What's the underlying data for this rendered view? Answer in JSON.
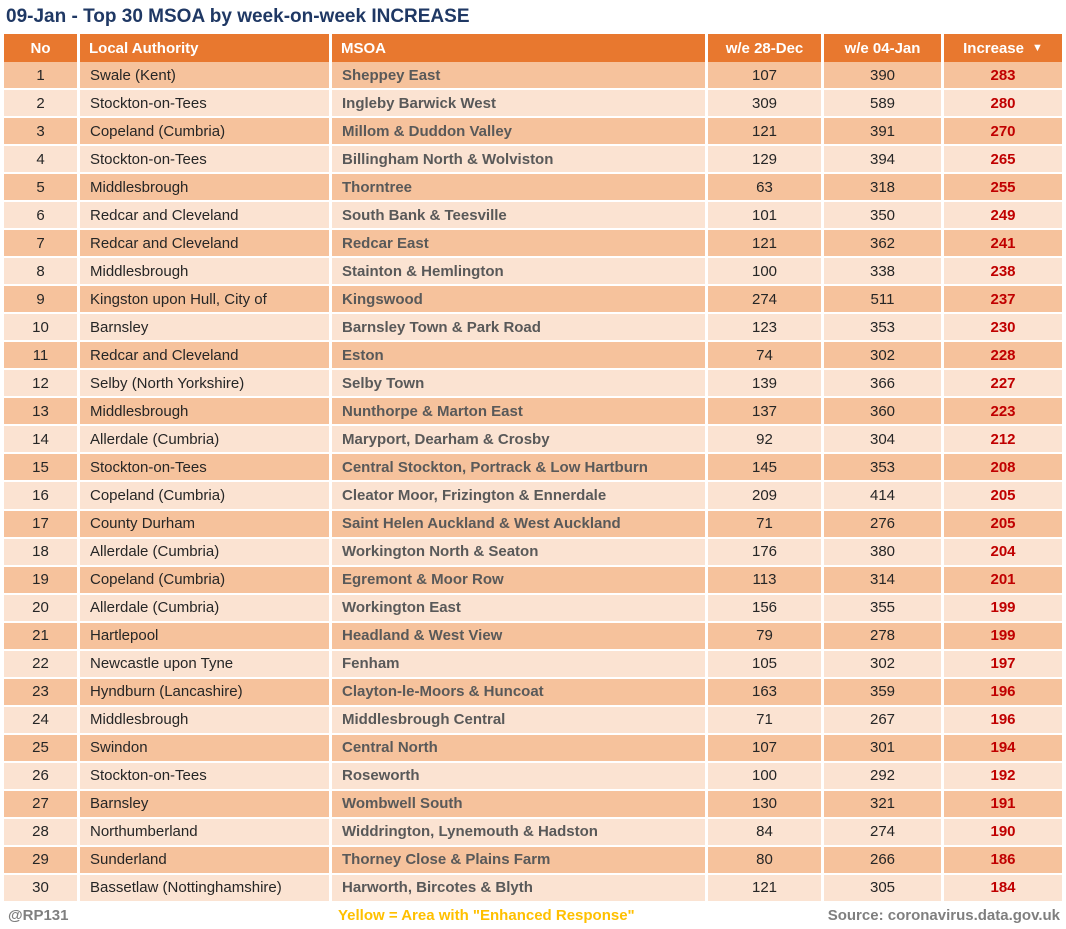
{
  "title": "09-Jan - Top 30 MSOA by week-on-week INCREASE",
  "columns": {
    "no": "No",
    "local_authority": "Local Authority",
    "msoa": "MSOA",
    "week1": "w/e 28-Dec",
    "week2": "w/e 04-Jan",
    "increase": "Increase",
    "sort_icon": "▼"
  },
  "footer": {
    "handle": "@RP131",
    "legend": "Yellow = Area with \"Enhanced Response\"",
    "source": "Source: coronavirus.data.gov.uk"
  },
  "colors": {
    "header_bg": "#E8782F",
    "row_dark": "#F6C29C",
    "row_light": "#FBE3D2",
    "increase_text": "#C00000",
    "title_text": "#1F3864",
    "msoa_text": "#595959",
    "body_text": "#262626",
    "footer_gray": "#7F7F7F",
    "legend_yellow": "#FFC000"
  },
  "chart_data": {
    "type": "table",
    "title": "09-Jan - Top 30 MSOA by week-on-week INCREASE",
    "columns": [
      "No",
      "Local Authority",
      "MSOA",
      "w/e 28-Dec",
      "w/e 04-Jan",
      "Increase"
    ],
    "sort": {
      "column": "Increase",
      "direction": "desc"
    },
    "rows": [
      [
        1,
        "Swale (Kent)",
        "Sheppey East",
        107,
        390,
        283
      ],
      [
        2,
        "Stockton-on-Tees",
        "Ingleby Barwick West",
        309,
        589,
        280
      ],
      [
        3,
        "Copeland (Cumbria)",
        "Millom & Duddon Valley",
        121,
        391,
        270
      ],
      [
        4,
        "Stockton-on-Tees",
        "Billingham North & Wolviston",
        129,
        394,
        265
      ],
      [
        5,
        "Middlesbrough",
        "Thorntree",
        63,
        318,
        255
      ],
      [
        6,
        "Redcar and Cleveland",
        "South Bank & Teesville",
        101,
        350,
        249
      ],
      [
        7,
        "Redcar and Cleveland",
        "Redcar East",
        121,
        362,
        241
      ],
      [
        8,
        "Middlesbrough",
        "Stainton & Hemlington",
        100,
        338,
        238
      ],
      [
        9,
        "Kingston upon Hull, City of",
        "Kingswood",
        274,
        511,
        237
      ],
      [
        10,
        "Barnsley",
        "Barnsley Town & Park Road",
        123,
        353,
        230
      ],
      [
        11,
        "Redcar and Cleveland",
        "Eston",
        74,
        302,
        228
      ],
      [
        12,
        "Selby (North Yorkshire)",
        "Selby Town",
        139,
        366,
        227
      ],
      [
        13,
        "Middlesbrough",
        "Nunthorpe & Marton East",
        137,
        360,
        223
      ],
      [
        14,
        "Allerdale (Cumbria)",
        "Maryport, Dearham & Crosby",
        92,
        304,
        212
      ],
      [
        15,
        "Stockton-on-Tees",
        "Central Stockton, Portrack & Low Hartburn",
        145,
        353,
        208
      ],
      [
        16,
        "Copeland (Cumbria)",
        "Cleator Moor, Frizington & Ennerdale",
        209,
        414,
        205
      ],
      [
        17,
        "County Durham",
        "Saint Helen Auckland & West Auckland",
        71,
        276,
        205
      ],
      [
        18,
        "Allerdale (Cumbria)",
        "Workington North & Seaton",
        176,
        380,
        204
      ],
      [
        19,
        "Copeland (Cumbria)",
        "Egremont & Moor Row",
        113,
        314,
        201
      ],
      [
        20,
        "Allerdale (Cumbria)",
        "Workington East",
        156,
        355,
        199
      ],
      [
        21,
        "Hartlepool",
        "Headland & West View",
        79,
        278,
        199
      ],
      [
        22,
        "Newcastle upon Tyne",
        "Fenham",
        105,
        302,
        197
      ],
      [
        23,
        "Hyndburn (Lancashire)",
        "Clayton-le-Moors & Huncoat",
        163,
        359,
        196
      ],
      [
        24,
        "Middlesbrough",
        "Middlesbrough Central",
        71,
        267,
        196
      ],
      [
        25,
        "Swindon",
        "Central North",
        107,
        301,
        194
      ],
      [
        26,
        "Stockton-on-Tees",
        "Roseworth",
        100,
        292,
        192
      ],
      [
        27,
        "Barnsley",
        "Wombwell South",
        130,
        321,
        191
      ],
      [
        28,
        "Northumberland",
        "Widdrington, Lynemouth & Hadston",
        84,
        274,
        190
      ],
      [
        29,
        "Sunderland",
        "Thorney Close & Plains Farm",
        80,
        266,
        186
      ],
      [
        30,
        "Bassetlaw (Nottinghamshire)",
        "Harworth, Bircotes & Blyth",
        121,
        305,
        184
      ]
    ]
  }
}
